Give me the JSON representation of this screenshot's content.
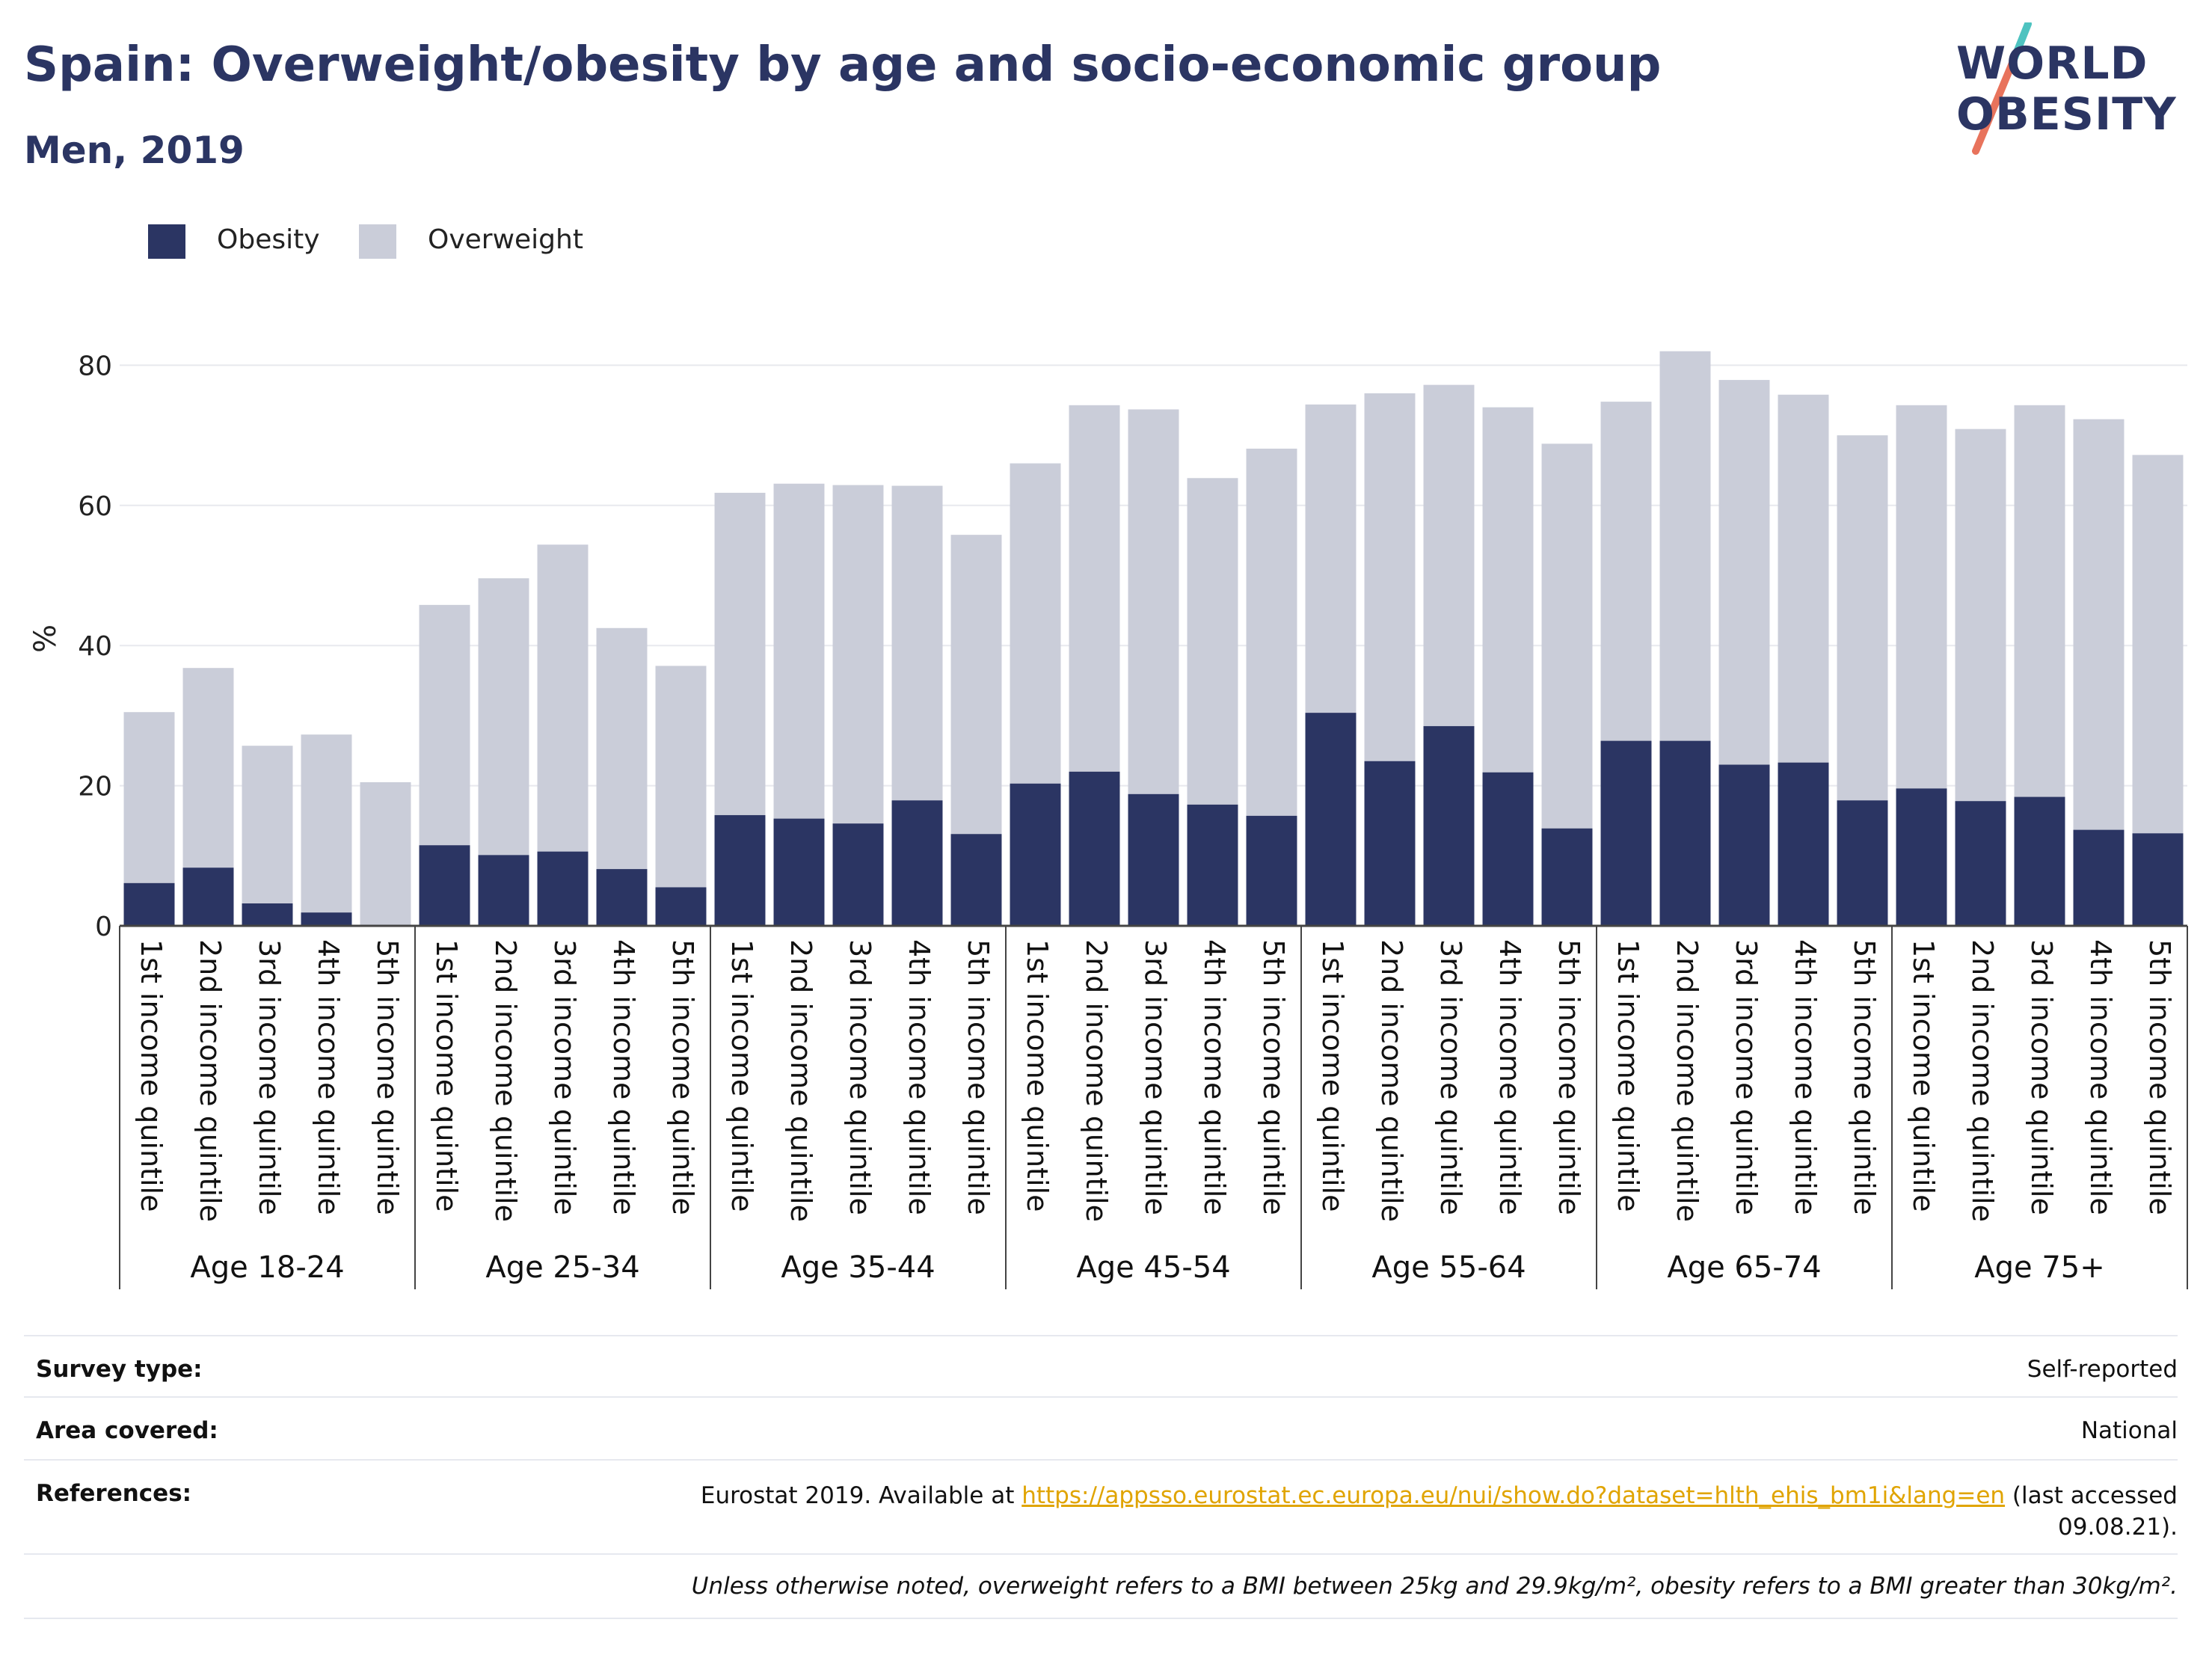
{
  "header": {
    "title": "Spain: Overweight/obesity by age and socio-economic group",
    "subtitle": "Men, 2019"
  },
  "logo": {
    "line1": "WORLD",
    "line2": "OBESITY",
    "slash_colors": [
      "#4ec3c0",
      "#e8735c"
    ],
    "text_color": "#2b3563"
  },
  "legend": [
    {
      "label": "Obesity",
      "color": "#2b3563"
    },
    {
      "label": "Overweight",
      "color": "#cacdd9"
    }
  ],
  "chart_data": {
    "type": "bar",
    "stacked": false,
    "overlapping": true,
    "ylabel": "%",
    "ylim": [
      0,
      82
    ],
    "yticks": [
      0,
      20,
      40,
      60,
      80
    ],
    "grid": true,
    "legend_position": "top-left",
    "groups": [
      "Age 18-24",
      "Age 25-34",
      "Age 35-44",
      "Age 45-54",
      "Age 55-64",
      "Age 65-74",
      "Age 75+"
    ],
    "categories": [
      "1st income quintile",
      "2nd income quintile",
      "3rd income quintile",
      "4th income quintile",
      "5th income quintile"
    ],
    "series": [
      {
        "name": "Overweight",
        "color": "#cacdd9",
        "values": [
          [
            30.5,
            36.8,
            25.7,
            27.3,
            20.5
          ],
          [
            45.8,
            49.6,
            54.4,
            42.5,
            37.1
          ],
          [
            61.8,
            63.1,
            62.9,
            62.8,
            55.8
          ],
          [
            66.0,
            74.3,
            73.7,
            63.9,
            68.1
          ],
          [
            74.4,
            76.0,
            77.2,
            74.0,
            68.8
          ],
          [
            74.8,
            82.0,
            77.9,
            75.8,
            70.0
          ],
          [
            74.3,
            70.9,
            74.3,
            72.3,
            67.2
          ]
        ]
      },
      {
        "name": "Obesity",
        "color": "#2b3563",
        "values": [
          [
            6.1,
            8.3,
            3.2,
            1.9,
            0.0
          ],
          [
            11.5,
            10.1,
            10.6,
            8.1,
            5.5
          ],
          [
            15.8,
            15.3,
            14.6,
            17.9,
            13.1
          ],
          [
            20.3,
            22.0,
            18.8,
            17.3,
            15.7
          ],
          [
            30.4,
            23.5,
            28.5,
            21.9,
            13.9
          ],
          [
            26.4,
            26.4,
            23.0,
            23.3,
            17.9
          ],
          [
            19.6,
            17.8,
            18.4,
            13.7,
            13.2
          ]
        ]
      }
    ]
  },
  "info": {
    "survey_type_label": "Survey type:",
    "survey_type_value": "Self-reported",
    "area_label": "Area covered:",
    "area_value": "National",
    "references_label": "References:",
    "references_prefix": "Eurostat 2019. Available at ",
    "references_link": "https://appsso.eurostat.ec.europa.eu/nui/show.do?dataset=hlth_ehis_bm1i&lang=en",
    "references_suffix_1": " (last accessed",
    "references_suffix_2": "09.08.21).",
    "note": "Unless otherwise noted, overweight refers to a BMI between 25kg and 29.9kg/m², obesity refers to a BMI greater than 30kg/m²."
  }
}
